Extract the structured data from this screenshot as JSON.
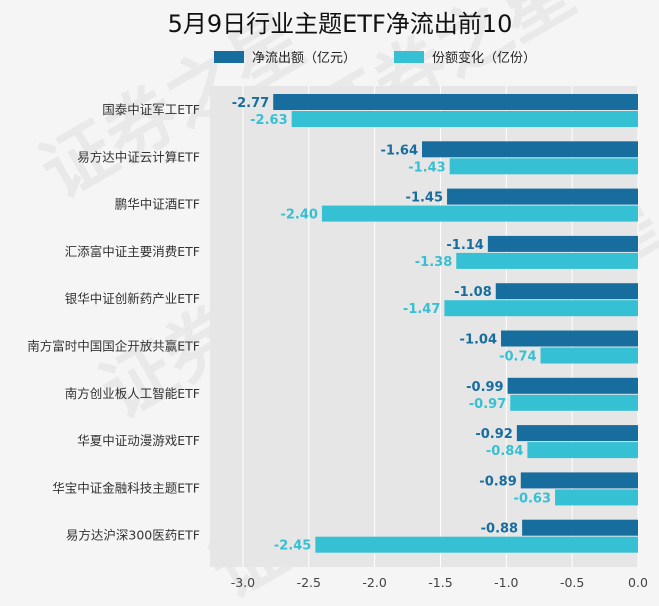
{
  "chart_data": {
    "type": "bar",
    "orientation": "horizontal",
    "title": "5月9日行业主题ETF净流出前10",
    "categories": [
      "国泰中证军工ETF",
      "易方达中证云计算ETF",
      "鹏华中证酒ETF",
      "汇添富中证主要消费ETF",
      "银华中证创新药产业ETF",
      "南方富时中国国企开放共赢ETF",
      "南方创业板人工智能ETF",
      "华夏中证动漫游戏ETF",
      "华宝中证金融科技主题ETF",
      "易方达沪深300医药ETF"
    ],
    "series": [
      {
        "name": "净流出额（亿元）",
        "color": "#176e9e",
        "values": [
          -2.77,
          -1.64,
          -1.45,
          -1.14,
          -1.08,
          -1.04,
          -0.99,
          -0.92,
          -0.89,
          -0.88
        ]
      },
      {
        "name": "份额变化（亿份）",
        "color": "#36c0d3",
        "values": [
          -2.63,
          -1.43,
          -2.4,
          -1.38,
          -1.47,
          -0.74,
          -0.97,
          -0.84,
          -0.63,
          -2.45
        ]
      }
    ],
    "xlim": [
      -3.25,
      0
    ],
    "xticks": [
      -3.0,
      -2.5,
      -2.0,
      -1.5,
      -1.0,
      -0.5,
      0.0
    ],
    "xtick_labels": [
      "-3.0",
      "-2.5",
      "-2.0",
      "-1.5",
      "-1.0",
      "-0.5",
      "0.0"
    ],
    "legend_position": "top",
    "grid": true
  },
  "watermark": "证券之星"
}
